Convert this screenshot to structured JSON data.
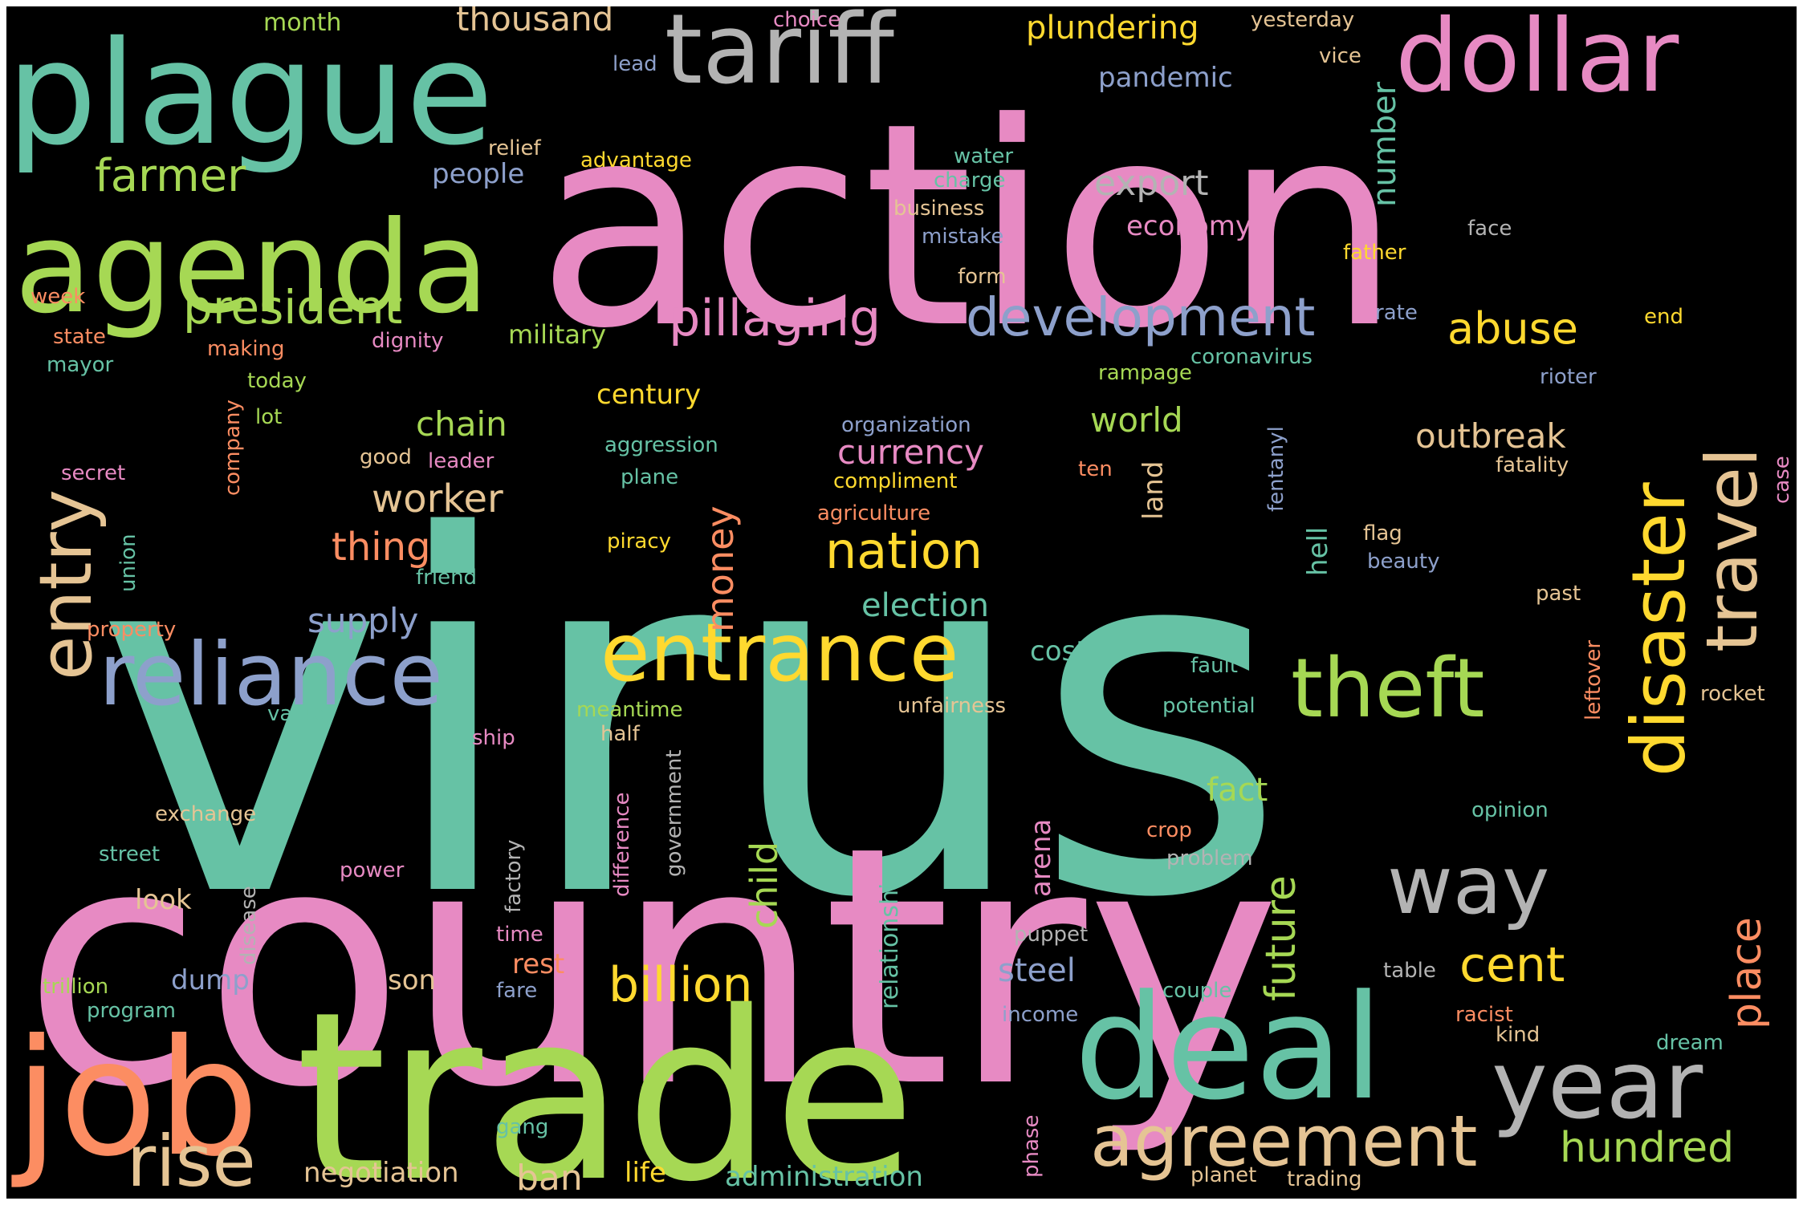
{
  "palette": {
    "teal": "#66c2a5",
    "pink": "#e78ac3",
    "green": "#a6d854",
    "gray": "#b3b3b3",
    "orange": "#fc8d62",
    "blue": "#8da0cb",
    "tan": "#e5c494",
    "yellow": "#ffd92f"
  },
  "words": [
    {
      "text": "virus",
      "color": "teal"
    },
    {
      "text": "country",
      "color": "pink"
    },
    {
      "text": "action",
      "color": "pink"
    },
    {
      "text": "trade",
      "color": "green"
    },
    {
      "text": "plague",
      "color": "teal"
    },
    {
      "text": "agenda",
      "color": "green"
    },
    {
      "text": "tariff",
      "color": "gray"
    },
    {
      "text": "dollar",
      "color": "pink"
    },
    {
      "text": "job",
      "color": "orange"
    },
    {
      "text": "deal",
      "color": "teal"
    },
    {
      "text": "year",
      "color": "gray"
    },
    {
      "text": "disaster",
      "color": "yellow"
    },
    {
      "text": "travel",
      "color": "tan"
    },
    {
      "text": "entry",
      "color": "tan"
    },
    {
      "text": "reliance",
      "color": "blue"
    },
    {
      "text": "entrance",
      "color": "yellow"
    },
    {
      "text": "theft",
      "color": "green"
    },
    {
      "text": "way",
      "color": "gray"
    },
    {
      "text": "agreement",
      "color": "tan"
    },
    {
      "text": "rise",
      "color": "tan"
    },
    {
      "text": "development",
      "color": "blue"
    },
    {
      "text": "pillaging",
      "color": "pink"
    },
    {
      "text": "president",
      "color": "green"
    },
    {
      "text": "farmer",
      "color": "green"
    },
    {
      "text": "abuse",
      "color": "yellow"
    },
    {
      "text": "nation",
      "color": "yellow"
    },
    {
      "text": "billion",
      "color": "yellow"
    },
    {
      "text": "hundred",
      "color": "green"
    },
    {
      "text": "cent",
      "color": "yellow"
    },
    {
      "text": "place",
      "color": "orange"
    },
    {
      "text": "future",
      "color": "green"
    },
    {
      "text": "thousand",
      "color": "tan"
    },
    {
      "text": "plundering",
      "color": "yellow"
    },
    {
      "text": "export",
      "color": "gray"
    },
    {
      "text": "outbreak",
      "color": "tan"
    },
    {
      "text": "worker",
      "color": "tan"
    },
    {
      "text": "thing",
      "color": "orange"
    },
    {
      "text": "currency",
      "color": "pink"
    },
    {
      "text": "money",
      "color": "orange"
    },
    {
      "text": "child",
      "color": "green"
    },
    {
      "text": "chain",
      "color": "green"
    },
    {
      "text": "world",
      "color": "green"
    },
    {
      "text": "supply",
      "color": "blue"
    },
    {
      "text": "election",
      "color": "teal"
    },
    {
      "text": "fact",
      "color": "green"
    },
    {
      "text": "steel",
      "color": "blue"
    },
    {
      "text": "number",
      "color": "teal"
    },
    {
      "text": "pandemic",
      "color": "blue"
    },
    {
      "text": "economy",
      "color": "pink"
    },
    {
      "text": "military",
      "color": "green"
    },
    {
      "text": "century",
      "color": "yellow"
    },
    {
      "text": "people",
      "color": "blue"
    },
    {
      "text": "month",
      "color": "green"
    },
    {
      "text": "choice",
      "color": "pink"
    },
    {
      "text": "yesterday",
      "color": "tan"
    },
    {
      "text": "lead",
      "color": "blue"
    },
    {
      "text": "vice",
      "color": "tan"
    },
    {
      "text": "relief",
      "color": "tan"
    },
    {
      "text": "advantage",
      "color": "yellow"
    },
    {
      "text": "water",
      "color": "teal"
    },
    {
      "text": "charge",
      "color": "teal"
    },
    {
      "text": "business",
      "color": "tan"
    },
    {
      "text": "mistake",
      "color": "blue"
    },
    {
      "text": "face",
      "color": "gray"
    },
    {
      "text": "father",
      "color": "yellow"
    },
    {
      "text": "form",
      "color": "tan"
    },
    {
      "text": "week",
      "color": "orange"
    },
    {
      "text": "state",
      "color": "orange"
    },
    {
      "text": "making",
      "color": "orange"
    },
    {
      "text": "dignity",
      "color": "pink"
    },
    {
      "text": "rate",
      "color": "blue"
    },
    {
      "text": "end",
      "color": "yellow"
    },
    {
      "text": "mayor",
      "color": "teal"
    },
    {
      "text": "today",
      "color": "green"
    },
    {
      "text": "coronavirus",
      "color": "teal"
    },
    {
      "text": "rampage",
      "color": "green"
    },
    {
      "text": "rioter",
      "color": "blue"
    },
    {
      "text": "lot",
      "color": "green"
    },
    {
      "text": "company",
      "color": "orange"
    },
    {
      "text": "organization",
      "color": "blue"
    },
    {
      "text": "aggression",
      "color": "teal"
    },
    {
      "text": "good",
      "color": "tan"
    },
    {
      "text": "leader",
      "color": "pink"
    },
    {
      "text": "secret",
      "color": "pink"
    },
    {
      "text": "plane",
      "color": "teal"
    },
    {
      "text": "compliment",
      "color": "yellow"
    },
    {
      "text": "ten",
      "color": "orange"
    },
    {
      "text": "land",
      "color": "tan"
    },
    {
      "text": "fentanyl",
      "color": "blue"
    },
    {
      "text": "fatality",
      "color": "tan"
    },
    {
      "text": "case",
      "color": "pink"
    },
    {
      "text": "agriculture",
      "color": "orange"
    },
    {
      "text": "union",
      "color": "teal"
    },
    {
      "text": "piracy",
      "color": "yellow"
    },
    {
      "text": "hell",
      "color": "teal"
    },
    {
      "text": "flag",
      "color": "tan"
    },
    {
      "text": "beauty",
      "color": "blue"
    },
    {
      "text": "friend",
      "color": "teal"
    },
    {
      "text": "past",
      "color": "tan"
    },
    {
      "text": "property",
      "color": "orange"
    },
    {
      "text": "leftover",
      "color": "orange"
    },
    {
      "text": "cost",
      "color": "teal"
    },
    {
      "text": "fault",
      "color": "teal"
    },
    {
      "text": "value",
      "color": "teal"
    },
    {
      "text": "meantime",
      "color": "green"
    },
    {
      "text": "unfairness",
      "color": "tan"
    },
    {
      "text": "potential",
      "color": "teal"
    },
    {
      "text": "rocket",
      "color": "tan"
    },
    {
      "text": "ship",
      "color": "pink"
    },
    {
      "text": "half",
      "color": "tan"
    },
    {
      "text": "government",
      "color": "gray"
    },
    {
      "text": "difference",
      "color": "pink"
    },
    {
      "text": "exchange",
      "color": "tan"
    },
    {
      "text": "factory",
      "color": "gray"
    },
    {
      "text": "relationship",
      "color": "teal"
    },
    {
      "text": "arena",
      "color": "pink"
    },
    {
      "text": "crop",
      "color": "orange"
    },
    {
      "text": "opinion",
      "color": "teal"
    },
    {
      "text": "street",
      "color": "teal"
    },
    {
      "text": "problem",
      "color": "gray"
    },
    {
      "text": "power",
      "color": "pink"
    },
    {
      "text": "disease",
      "color": "gray"
    },
    {
      "text": "look",
      "color": "tan"
    },
    {
      "text": "time",
      "color": "pink"
    },
    {
      "text": "puppet",
      "color": "gray"
    },
    {
      "text": "rest",
      "color": "orange"
    },
    {
      "text": "table",
      "color": "gray"
    },
    {
      "text": "fare",
      "color": "blue"
    },
    {
      "text": "son",
      "color": "tan"
    },
    {
      "text": "dump",
      "color": "blue"
    },
    {
      "text": "trillion",
      "color": "green"
    },
    {
      "text": "couple",
      "color": "teal"
    },
    {
      "text": "program",
      "color": "teal"
    },
    {
      "text": "income",
      "color": "blue"
    },
    {
      "text": "racist",
      "color": "orange"
    },
    {
      "text": "kind",
      "color": "tan"
    },
    {
      "text": "dream",
      "color": "teal"
    },
    {
      "text": "gang",
      "color": "teal"
    },
    {
      "text": "phase",
      "color": "pink"
    },
    {
      "text": "negotiation",
      "color": "tan"
    },
    {
      "text": "ban",
      "color": "tan"
    },
    {
      "text": "life",
      "color": "yellow"
    },
    {
      "text": "administration",
      "color": "teal"
    },
    {
      "text": "planet",
      "color": "tan"
    },
    {
      "text": "trading",
      "color": "tan"
    }
  ]
}
